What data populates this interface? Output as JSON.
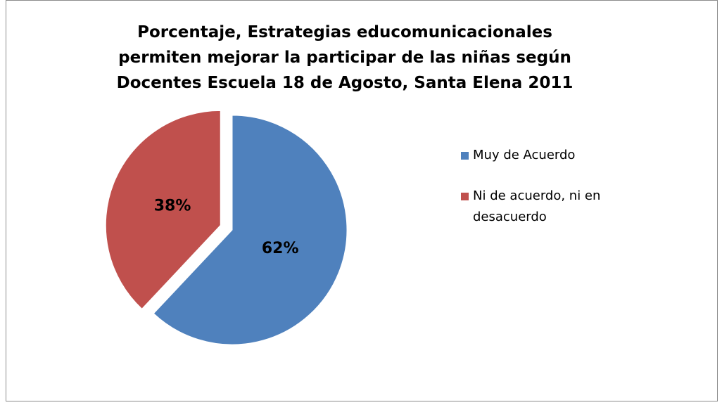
{
  "chart_data": {
    "type": "pie",
    "title": "Porcentaje, Estrategias educomunicacionales permiten mejorar la participar de las niñas según Docentes Escuela 18 de Agosto, Santa Elena 2011",
    "categories": [
      "Muy de Acuerdo",
      "Ni de acuerdo, ni en desacuerdo"
    ],
    "values": [
      62,
      38
    ],
    "value_labels": [
      "62%",
      "38%"
    ],
    "colors": [
      "#4f81bd",
      "#c0504d"
    ],
    "legend": "right"
  }
}
